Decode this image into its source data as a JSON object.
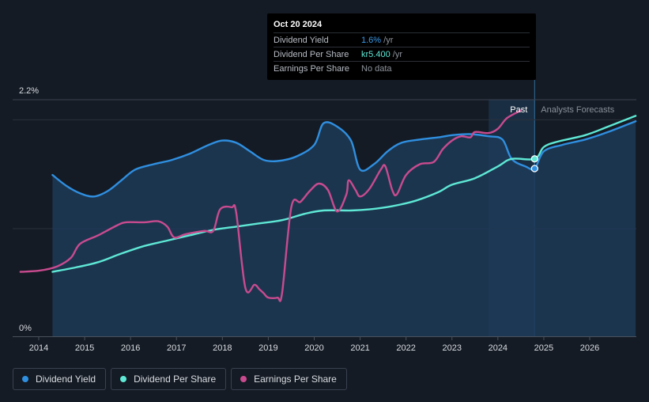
{
  "tooltip": {
    "date": "Oct 20 2024",
    "rows": [
      {
        "label": "Dividend Yield",
        "value": "1.6%",
        "suffix": " /yr"
      },
      {
        "label": "Dividend Per Share",
        "value": "kr5.400",
        "suffix": " /yr"
      },
      {
        "label": "Earnings Per Share",
        "value": "No data",
        "suffix": ""
      }
    ]
  },
  "legend": {
    "items": [
      {
        "label": "Dividend Yield",
        "color": "#2f8fe0"
      },
      {
        "label": "Dividend Per Share",
        "color": "#5ee8d5"
      },
      {
        "label": "Earnings Per Share",
        "color": "#c94b8f"
      }
    ]
  },
  "chart_data": {
    "type": "line",
    "title": "",
    "xlabel": "",
    "ylabel": "",
    "x_ticks": [
      "2014",
      "2015",
      "2016",
      "2017",
      "2018",
      "2019",
      "2020",
      "2021",
      "2022",
      "2023",
      "2024",
      "2025",
      "2026"
    ],
    "y_tick_labels": [
      "2.2%",
      "0%"
    ],
    "ylim": [
      0,
      2.2
    ],
    "xlim": [
      2013.6,
      2027.0
    ],
    "divider_x": 2024.8,
    "past_start_x": 2023.8,
    "past_label": "Past",
    "forecast_label": "Analysts Forecasts",
    "series": [
      {
        "name": "Dividend Yield",
        "color": "#2f8fe0",
        "fill": true,
        "points": [
          [
            2014.3,
            1.5
          ],
          [
            2014.6,
            1.4
          ],
          [
            2014.9,
            1.33
          ],
          [
            2015.2,
            1.3
          ],
          [
            2015.5,
            1.35
          ],
          [
            2015.8,
            1.45
          ],
          [
            2016.1,
            1.55
          ],
          [
            2016.5,
            1.6
          ],
          [
            2016.9,
            1.64
          ],
          [
            2017.3,
            1.7
          ],
          [
            2017.7,
            1.78
          ],
          [
            2018.0,
            1.82
          ],
          [
            2018.3,
            1.8
          ],
          [
            2018.6,
            1.72
          ],
          [
            2018.9,
            1.64
          ],
          [
            2019.2,
            1.63
          ],
          [
            2019.6,
            1.67
          ],
          [
            2020.0,
            1.78
          ],
          [
            2020.2,
            1.98
          ],
          [
            2020.5,
            1.95
          ],
          [
            2020.8,
            1.82
          ],
          [
            2021.0,
            1.55
          ],
          [
            2021.3,
            1.6
          ],
          [
            2021.6,
            1.72
          ],
          [
            2021.9,
            1.8
          ],
          [
            2022.3,
            1.83
          ],
          [
            2022.7,
            1.85
          ],
          [
            2023.0,
            1.87
          ],
          [
            2023.4,
            1.88
          ],
          [
            2023.8,
            1.86
          ],
          [
            2024.1,
            1.83
          ],
          [
            2024.3,
            1.65
          ],
          [
            2024.6,
            1.58
          ],
          [
            2024.8,
            1.56
          ],
          [
            2025.0,
            1.72
          ],
          [
            2025.4,
            1.78
          ],
          [
            2025.9,
            1.83
          ],
          [
            2026.4,
            1.9
          ],
          [
            2027.0,
            2.0
          ]
        ]
      },
      {
        "name": "Dividend Per Share",
        "color": "#5ee8d5",
        "fill": false,
        "points": [
          [
            2014.3,
            0.6
          ],
          [
            2014.8,
            0.64
          ],
          [
            2015.3,
            0.69
          ],
          [
            2015.8,
            0.77
          ],
          [
            2016.3,
            0.84
          ],
          [
            2016.8,
            0.89
          ],
          [
            2017.3,
            0.94
          ],
          [
            2017.8,
            0.99
          ],
          [
            2018.3,
            1.02
          ],
          [
            2018.8,
            1.05
          ],
          [
            2019.3,
            1.08
          ],
          [
            2019.8,
            1.14
          ],
          [
            2020.2,
            1.17
          ],
          [
            2020.8,
            1.17
          ],
          [
            2021.2,
            1.18
          ],
          [
            2021.7,
            1.21
          ],
          [
            2022.2,
            1.26
          ],
          [
            2022.7,
            1.34
          ],
          [
            2023.0,
            1.41
          ],
          [
            2023.5,
            1.47
          ],
          [
            2024.0,
            1.58
          ],
          [
            2024.3,
            1.65
          ],
          [
            2024.8,
            1.65
          ],
          [
            2025.0,
            1.76
          ],
          [
            2025.3,
            1.81
          ],
          [
            2025.9,
            1.87
          ],
          [
            2026.4,
            1.95
          ],
          [
            2027.0,
            2.05
          ]
        ]
      },
      {
        "name": "Earnings Per Share",
        "color": "#c94b8f",
        "fill": false,
        "points": [
          [
            2013.6,
            0.6
          ],
          [
            2014.0,
            0.61
          ],
          [
            2014.4,
            0.65
          ],
          [
            2014.7,
            0.73
          ],
          [
            2014.9,
            0.86
          ],
          [
            2015.3,
            0.94
          ],
          [
            2015.7,
            1.03
          ],
          [
            2015.9,
            1.06
          ],
          [
            2016.3,
            1.06
          ],
          [
            2016.6,
            1.07
          ],
          [
            2016.8,
            1.02
          ],
          [
            2016.95,
            0.92
          ],
          [
            2017.2,
            0.95
          ],
          [
            2017.6,
            0.98
          ],
          [
            2017.8,
            0.98
          ],
          [
            2017.95,
            1.18
          ],
          [
            2018.2,
            1.2
          ],
          [
            2018.3,
            1.15
          ],
          [
            2018.5,
            0.45
          ],
          [
            2018.7,
            0.48
          ],
          [
            2018.8,
            0.44
          ],
          [
            2018.9,
            0.4
          ],
          [
            2019.0,
            0.36
          ],
          [
            2019.2,
            0.36
          ],
          [
            2019.3,
            0.4
          ],
          [
            2019.5,
            1.2
          ],
          [
            2019.7,
            1.25
          ],
          [
            2019.9,
            1.35
          ],
          [
            2020.1,
            1.42
          ],
          [
            2020.3,
            1.36
          ],
          [
            2020.5,
            1.16
          ],
          [
            2020.7,
            1.32
          ],
          [
            2020.75,
            1.45
          ],
          [
            2020.9,
            1.36
          ],
          [
            2021.0,
            1.3
          ],
          [
            2021.2,
            1.37
          ],
          [
            2021.45,
            1.55
          ],
          [
            2021.55,
            1.58
          ],
          [
            2021.7,
            1.36
          ],
          [
            2021.8,
            1.32
          ],
          [
            2022.0,
            1.5
          ],
          [
            2022.3,
            1.6
          ],
          [
            2022.6,
            1.62
          ],
          [
            2022.8,
            1.74
          ],
          [
            2023.0,
            1.82
          ],
          [
            2023.2,
            1.86
          ],
          [
            2023.4,
            1.85
          ],
          [
            2023.5,
            1.9
          ],
          [
            2023.8,
            1.89
          ],
          [
            2024.0,
            1.93
          ],
          [
            2024.2,
            2.03
          ],
          [
            2024.5,
            2.1
          ]
        ]
      }
    ],
    "markers": [
      {
        "series": "Dividend Per Share",
        "x": 2024.8,
        "y": 1.65
      },
      {
        "series": "Dividend Yield",
        "x": 2024.8,
        "y": 1.56
      }
    ]
  }
}
